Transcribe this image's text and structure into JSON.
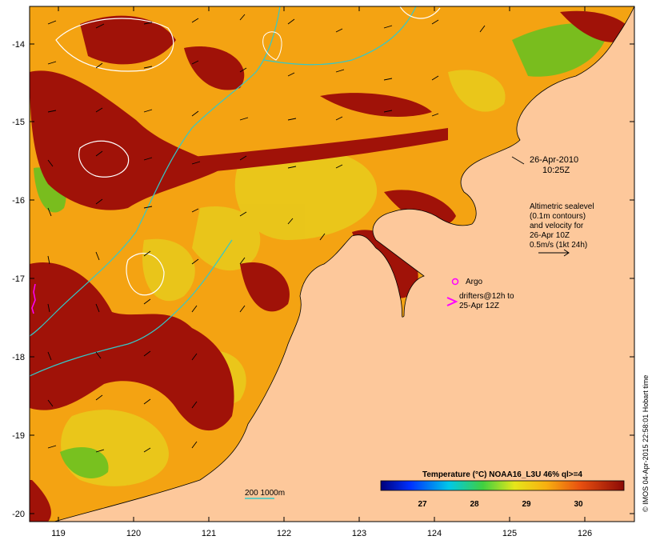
{
  "map": {
    "lat_labels": [
      "-14",
      "-15",
      "-16",
      "-17",
      "-18",
      "-19",
      "-20"
    ],
    "lon_labels": [
      "119",
      "120",
      "121",
      "122",
      "123",
      "124",
      "125",
      "126"
    ]
  },
  "timestamp": {
    "date": "26-Apr-2010",
    "time": "10:25Z"
  },
  "altimetry_note": [
    "Altimetric sealevel",
    "(0.1m contours)",
    "and velocity for",
    "26-Apr 10Z",
    "0.5m/s (1kt 24h)"
  ],
  "legend": {
    "argo": "Argo",
    "drifters_line1": "drifters@12h to",
    "drifters_line2": "25-Apr 12Z",
    "bathymetry": "200  1000m"
  },
  "colorbar": {
    "title": "Temperature (°C) NOAA16_L3U 46% ql>=4",
    "ticks": [
      "27",
      "28",
      "29",
      "30"
    ]
  },
  "credit": "© IMOS 04-Apr-2015 22:58:01 Hobart time",
  "colors": {
    "land": "#fdc89b",
    "sst_warm": "#f4a312",
    "sst_hot": "#a01208",
    "sst_mid": "#e8d21a",
    "sst_cool": "#8ec820",
    "contour": "#ffffff",
    "isobath": "#33c9c9",
    "drifter": "#ff00ff"
  }
}
